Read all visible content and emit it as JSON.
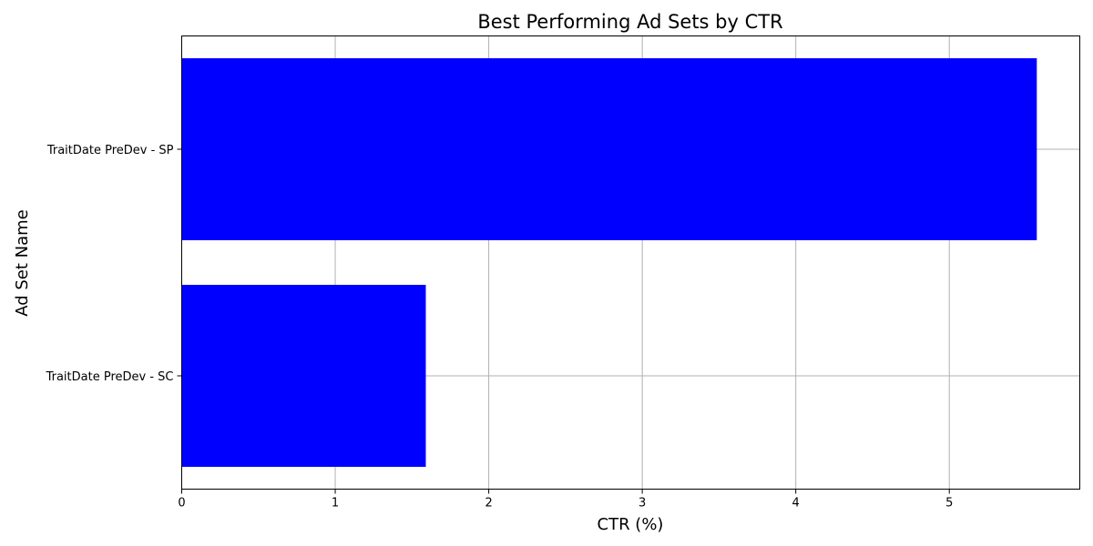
{
  "chart_data": {
    "type": "bar",
    "orientation": "horizontal",
    "title": "Best Performing Ad Sets by CTR",
    "xlabel": "CTR (%)",
    "ylabel": "Ad Set Name",
    "categories": [
      "TraitDate PreDev - SC",
      "TraitDate PreDev - SP"
    ],
    "values": [
      1.59,
      5.57
    ],
    "xlim": [
      0,
      5.85
    ],
    "xticks": [
      0,
      1,
      2,
      3,
      4,
      5
    ],
    "grid": true,
    "bar_color": "#0000ff"
  }
}
